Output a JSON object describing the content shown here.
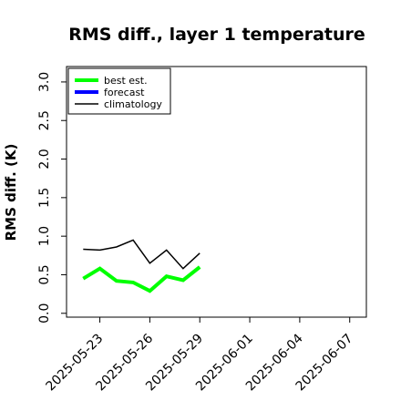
{
  "chart_data": {
    "type": "line",
    "title": "RMS diff., layer 1 temperature",
    "ylabel": "RMS diff. (K)",
    "xlabel": "",
    "xlim": [
      "2025-05-21",
      "2025-06-08"
    ],
    "ylim": [
      -0.05,
      3.2
    ],
    "yticks": [
      0.0,
      0.5,
      1.0,
      1.5,
      2.0,
      2.5,
      3.0
    ],
    "ytick_labels": [
      "0.0",
      "0.5",
      "1.0",
      "1.5",
      "2.0",
      "2.5",
      "3.0"
    ],
    "xticks": [
      "2025-05-23",
      "2025-05-26",
      "2025-05-29",
      "2025-06-01",
      "2025-06-04",
      "2025-06-07"
    ],
    "xtick_labels": [
      "2025-05-23",
      "2025-05-26",
      "2025-05-29",
      "2025-06-01",
      "2025-06-04",
      "2025-06-07"
    ],
    "highlight_xtick": "2025-05-29",
    "highlight_color": "#228b22",
    "legend_position": "top-left",
    "series": [
      {
        "name": "best est.",
        "color": "#00ff00",
        "x": [
          "2025-05-22",
          "2025-05-23",
          "2025-05-24",
          "2025-05-25",
          "2025-05-26",
          "2025-05-27",
          "2025-05-28",
          "2025-05-29"
        ],
        "y": [
          0.45,
          0.58,
          0.42,
          0.4,
          0.29,
          0.48,
          0.43,
          0.6
        ]
      },
      {
        "name": "forecast",
        "color": "#0000ff",
        "x": [],
        "y": []
      },
      {
        "name": "climatology",
        "color": "#000000",
        "x": [
          "2025-05-22",
          "2025-05-23",
          "2025-05-24",
          "2025-05-25",
          "2025-05-26",
          "2025-05-27",
          "2025-05-28",
          "2025-05-29"
        ],
        "y": [
          0.83,
          0.82,
          0.86,
          0.95,
          0.65,
          0.82,
          0.58,
          0.78
        ]
      }
    ]
  }
}
